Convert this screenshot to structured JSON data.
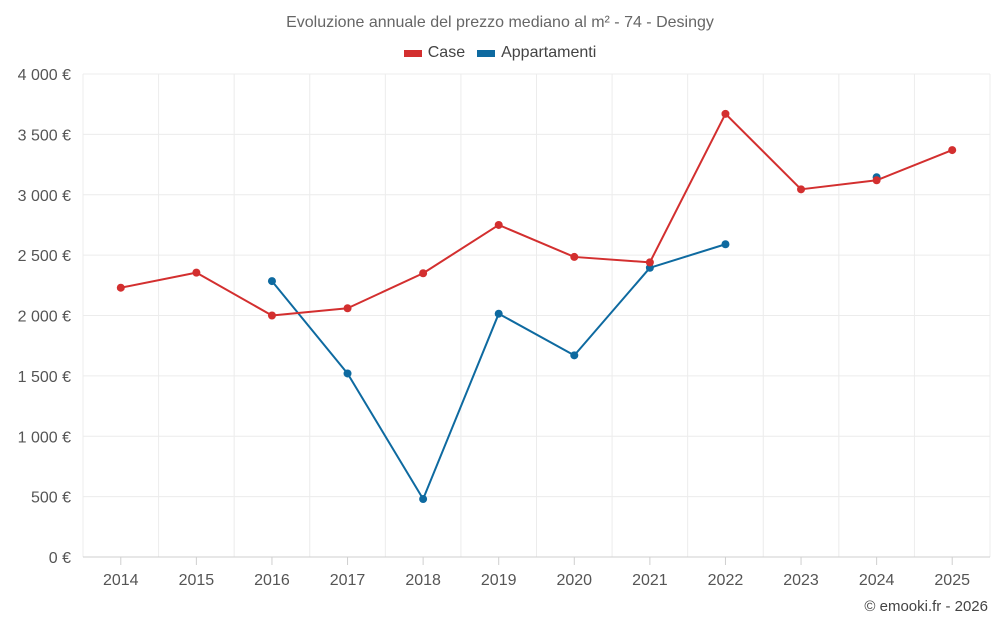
{
  "chart_data": {
    "type": "line",
    "title": "Evoluzione annuale del prezzo mediano al m² - 74 - Desingy",
    "categories": [
      "2014",
      "2015",
      "2016",
      "2017",
      "2018",
      "2019",
      "2020",
      "2021",
      "2022",
      "2023",
      "2024",
      "2025"
    ],
    "ylim": [
      0,
      4000
    ],
    "yticks": [
      0,
      500,
      1000,
      1500,
      2000,
      2500,
      3000,
      3500,
      4000
    ],
    "ytick_labels": [
      "0 €",
      "500 €",
      "1 000 €",
      "1 500 €",
      "2 000 €",
      "2 500 €",
      "3 000 €",
      "3 500 €",
      "4 000 €"
    ],
    "grid": true,
    "legend_position": "top-center",
    "series": [
      {
        "name": "Case",
        "color": "#d32f2f",
        "values": [
          2230,
          2355,
          2000,
          2060,
          2350,
          2750,
          2485,
          2440,
          3670,
          3045,
          3120,
          3370
        ]
      },
      {
        "name": "Appartamenti",
        "color": "#0e6aa0",
        "values": [
          null,
          null,
          2285,
          1520,
          480,
          2015,
          1670,
          2395,
          2590,
          null,
          3145,
          null
        ]
      }
    ]
  },
  "credit": "© emooki.fr - 2026"
}
